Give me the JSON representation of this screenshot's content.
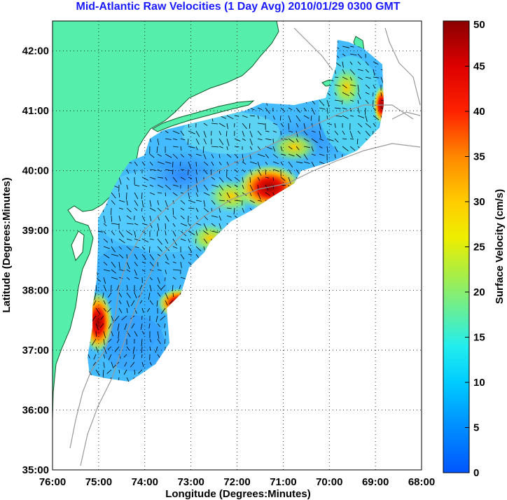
{
  "title": "Mid-Atlantic Raw Velocities (1 Day Avg) 2010/01/29 0300 GMT",
  "x_axis": {
    "label": "Longitude (Degrees:Minutes)",
    "ticks": [
      "76:00",
      "75:00",
      "74:00",
      "73:00",
      "72:00",
      "71:00",
      "70:00",
      "69:00",
      "68:00"
    ]
  },
  "y_axis": {
    "label": "Latitude (Degrees:Minutes)",
    "ticks": [
      "35:00",
      "36:00",
      "37:00",
      "38:00",
      "39:00",
      "40:00",
      "41:00",
      "42:00"
    ]
  },
  "colorbar": {
    "label": "Surface Velocity (cm/s)",
    "ticks": [
      "0",
      "5",
      "10",
      "15",
      "20",
      "25",
      "30",
      "35",
      "40",
      "45",
      "50"
    ],
    "min": 0,
    "max": 50
  },
  "colors": {
    "land": "#55eeaa",
    "ocean_field_base": "#33aaff",
    "title": "#1a1aff",
    "grid": "#000000"
  },
  "chart_data": {
    "type": "heatmap",
    "title": "Mid-Atlantic Raw Velocities (1 Day Avg) 2010/01/29 0300 GMT",
    "xlabel": "Longitude (Degrees:Minutes)",
    "ylabel": "Latitude (Degrees:Minutes)",
    "xlim": [
      -76,
      -68
    ],
    "ylim": [
      35,
      42.5
    ],
    "grid": true,
    "colorbar_range": [
      0,
      50
    ],
    "hotspots": [
      {
        "lon": -71.1,
        "lat": 39.75,
        "speed": 48
      },
      {
        "lon": -71.9,
        "lat": 39.55,
        "speed": 30
      },
      {
        "lon": -74.9,
        "lat": 37.5,
        "speed": 47
      },
      {
        "lon": -73.4,
        "lat": 37.75,
        "speed": 40
      },
      {
        "lon": -68.85,
        "lat": 40.95,
        "speed": 45
      },
      {
        "lon": -69.75,
        "lat": 41.3,
        "speed": 30
      }
    ]
  }
}
